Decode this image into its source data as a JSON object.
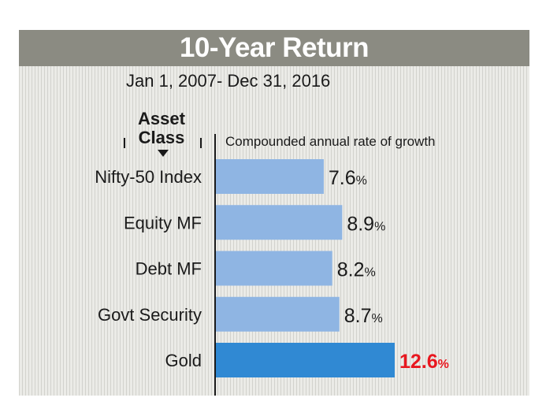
{
  "colors": {
    "bar": "#8fb5e3",
    "highlight_bar": "#3089d3",
    "highlight_text": "#e8171f"
  },
  "chart_data": {
    "type": "bar",
    "orientation": "horizontal",
    "title": "10-Year Return",
    "subtitle": "Jan 1, 2007- Dec 31, 2016",
    "category_header": [
      "Asset",
      "Class"
    ],
    "metric_label": "Compounded annual rate of growth",
    "categories": [
      "Nifty-50 Index",
      "Equity MF",
      "Debt MF",
      "Govt Security",
      "Gold"
    ],
    "values": [
      7.6,
      8.9,
      8.2,
      8.7,
      12.6
    ],
    "value_labels": [
      "7.6",
      "8.9",
      "8.2",
      "8.7",
      "12.6"
    ],
    "unit": "%",
    "highlight_index": 4,
    "xlim": [
      0,
      12.6
    ],
    "grid": false,
    "legend": "none"
  }
}
